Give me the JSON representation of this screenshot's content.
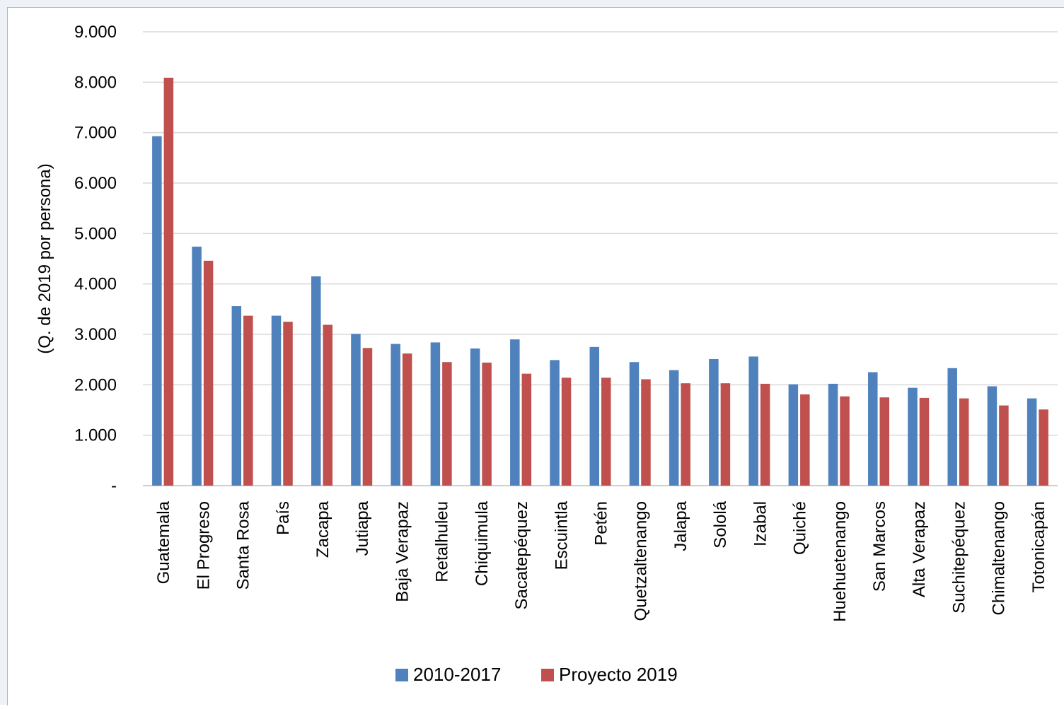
{
  "chart_data": {
    "type": "bar",
    "title": "",
    "xlabel": "",
    "ylabel": "(Q. de 2019 por persona)",
    "ylim": [
      0,
      9000
    ],
    "yticks": [
      0,
      1000,
      2000,
      3000,
      4000,
      5000,
      6000,
      7000,
      8000,
      9000
    ],
    "ytick_labels": [
      "-",
      "1.000",
      "2.000",
      "3.000",
      "4.000",
      "5.000",
      "6.000",
      "7.000",
      "8.000",
      "9.000"
    ],
    "grid": true,
    "legend_position": "bottom",
    "categories": [
      "Guatemala",
      "El Progreso",
      "Santa Rosa",
      "País",
      "Zacapa",
      "Jutiapa",
      "Baja Verapaz",
      "Retalhuleu",
      "Chiquimula",
      "Sacatepéquez",
      "Escuintla",
      "Petén",
      "Quetzaltenango",
      "Jalapa",
      "Sololá",
      "Izabal",
      "Quiché",
      "Huehuetenango",
      "San Marcos",
      "Alta Verapaz",
      "Suchitepéquez",
      "Chimaltenango",
      "Totonicapán"
    ],
    "series": [
      {
        "name": "2010-2017",
        "color": "#4f81bd",
        "values": [
          6930,
          4740,
          3560,
          3370,
          4150,
          3010,
          2810,
          2840,
          2720,
          2900,
          2490,
          2750,
          2450,
          2290,
          2510,
          2560,
          2010,
          2020,
          2250,
          1940,
          2330,
          1970,
          1730
        ]
      },
      {
        "name": "Proyecto 2019",
        "color": "#c0504d",
        "values": [
          8090,
          4460,
          3370,
          3250,
          3190,
          2730,
          2620,
          2450,
          2440,
          2220,
          2140,
          2140,
          2110,
          2030,
          2030,
          2020,
          1810,
          1770,
          1750,
          1740,
          1730,
          1590,
          1510
        ]
      }
    ]
  }
}
